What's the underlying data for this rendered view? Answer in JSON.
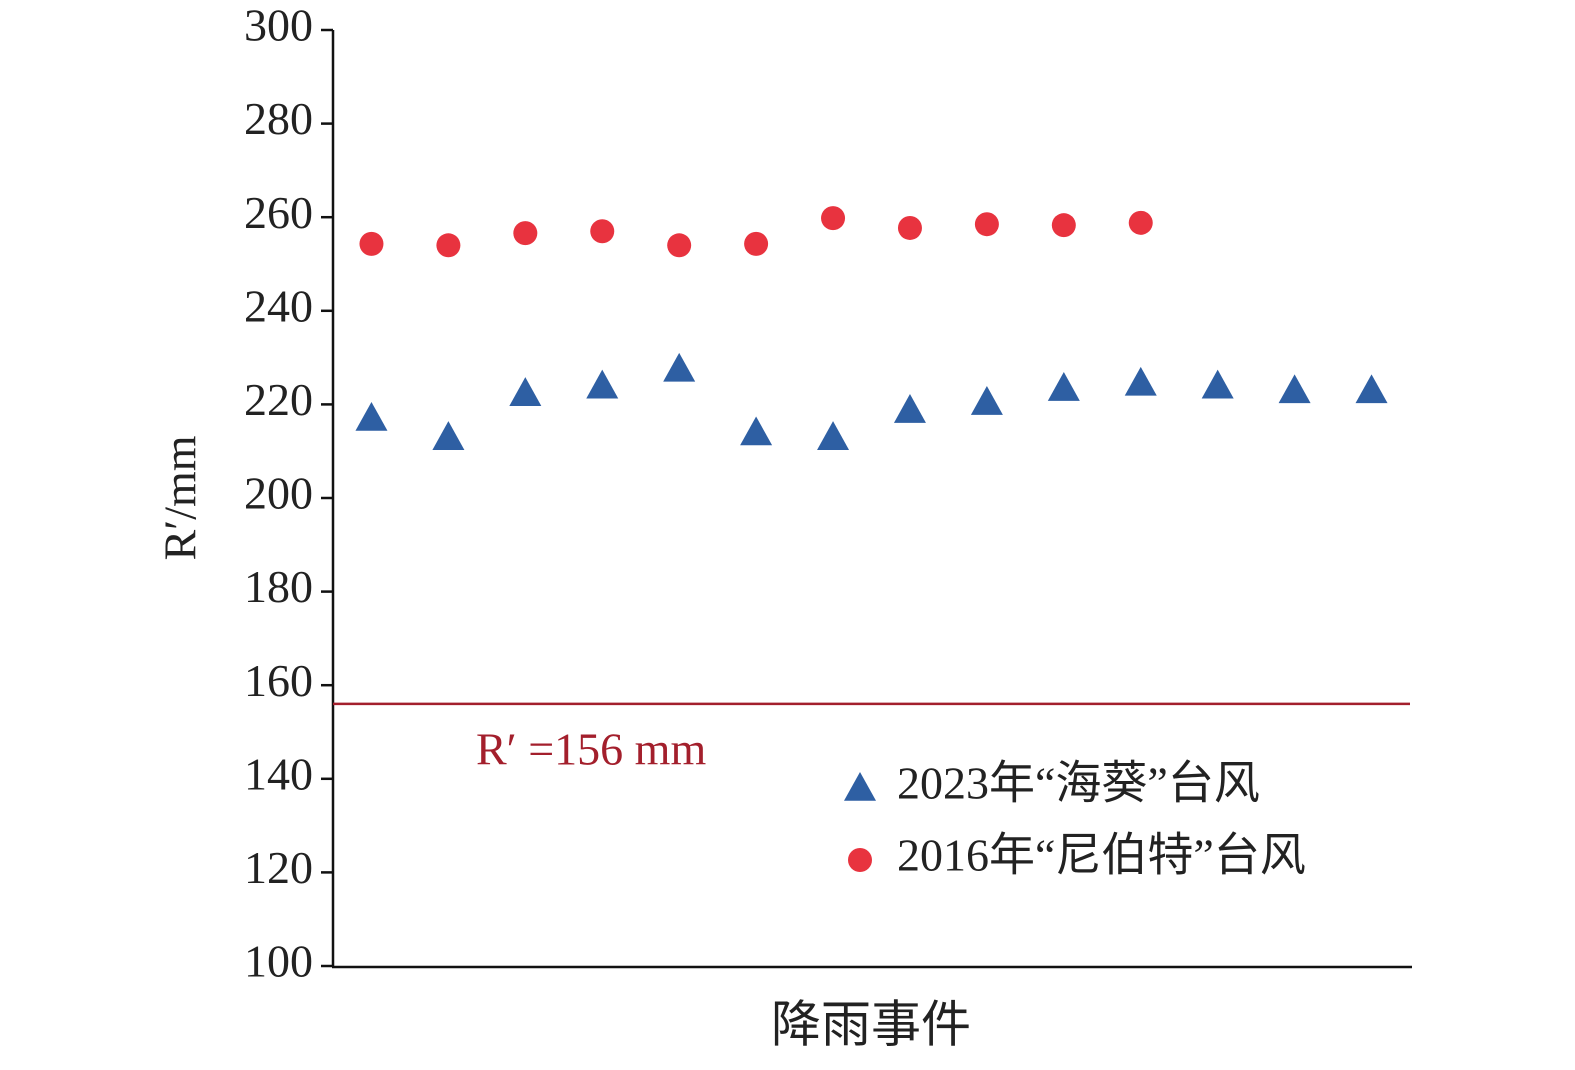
{
  "chart_data": {
    "type": "scatter",
    "y_label": "R′/mm",
    "x_label": "降雨事件",
    "categories": [
      null,
      null,
      null,
      null,
      null,
      null,
      null,
      null,
      null,
      null,
      null,
      null,
      null,
      null
    ],
    "series": [
      {
        "name": "2023年“海葵”台风",
        "color": "#2e5fa3",
        "marker": "triangle",
        "values": [
          217.1,
          213,
          222.4,
          224,
          227.6,
          214,
          213,
          218.8,
          220.5,
          223.5,
          224.6,
          224,
          223,
          223
        ]
      },
      {
        "name": "2016年“尼伯特”台风",
        "color": "#e8333f",
        "marker": "circle",
        "values": [
          254.3,
          254,
          256.6,
          257,
          254,
          254.3,
          259.8,
          257.7,
          258.5,
          258.3,
          258.8,
          null,
          null,
          null
        ]
      }
    ],
    "reference_line": {
      "value": 156,
      "label": "R′ =156 mm",
      "color": "#a31f2c"
    },
    "ylim": [
      100,
      300
    ],
    "yticks": [
      100,
      120,
      140,
      160,
      180,
      200,
      220,
      240,
      260,
      280,
      300
    ],
    "grid": false,
    "legend": "lower-right"
  }
}
